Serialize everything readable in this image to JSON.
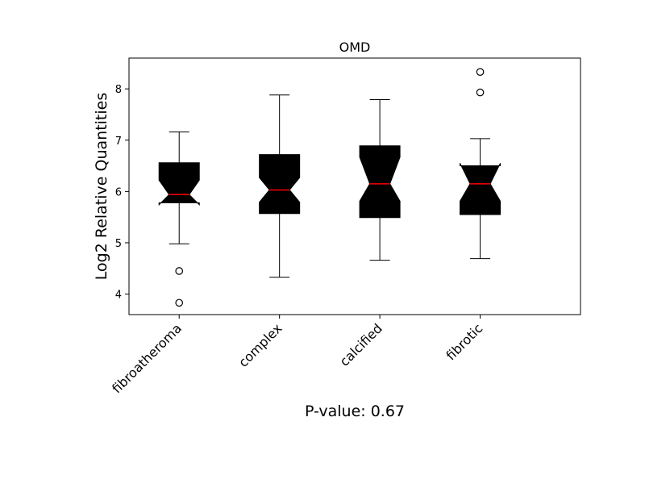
{
  "chart_data": {
    "type": "box",
    "title": "OMD",
    "xlabel": "",
    "ylabel": "Log2 Relative Quantities",
    "annotation": "P-value: 0.67",
    "ylim": [
      3.6,
      8.6
    ],
    "yticks": [
      4,
      5,
      6,
      7,
      8
    ],
    "notched": true,
    "grid": false,
    "colors": {
      "box_fill": "#000000",
      "median": "#ff0000",
      "whisker": "#000000",
      "flier": "#000000"
    },
    "categories": [
      "fibroatheroma",
      "complex",
      "calcified",
      "fibrotic"
    ],
    "boxes": [
      {
        "category": "fibroatheroma",
        "whisker_low": 4.98,
        "q1": 5.78,
        "median": 5.94,
        "q3": 6.56,
        "whisker_high": 7.16,
        "notch_low": 5.74,
        "notch_high": 6.22,
        "outliers": [
          4.45,
          3.83
        ]
      },
      {
        "category": "complex",
        "whisker_low": 4.33,
        "q1": 5.57,
        "median": 6.03,
        "q3": 6.72,
        "whisker_high": 7.88,
        "notch_low": 5.79,
        "notch_high": 6.27,
        "outliers": []
      },
      {
        "category": "calcified",
        "whisker_low": 4.66,
        "q1": 5.49,
        "median": 6.15,
        "q3": 6.89,
        "whisker_high": 7.79,
        "notch_low": 5.81,
        "notch_high": 6.67,
        "outliers": []
      },
      {
        "category": "fibrotic",
        "whisker_low": 4.69,
        "q1": 5.55,
        "median": 6.15,
        "q3": 6.5,
        "whisker_high": 7.03,
        "notch_low": 5.81,
        "notch_high": 6.55,
        "outliers": [
          8.33,
          7.93
        ]
      }
    ]
  }
}
